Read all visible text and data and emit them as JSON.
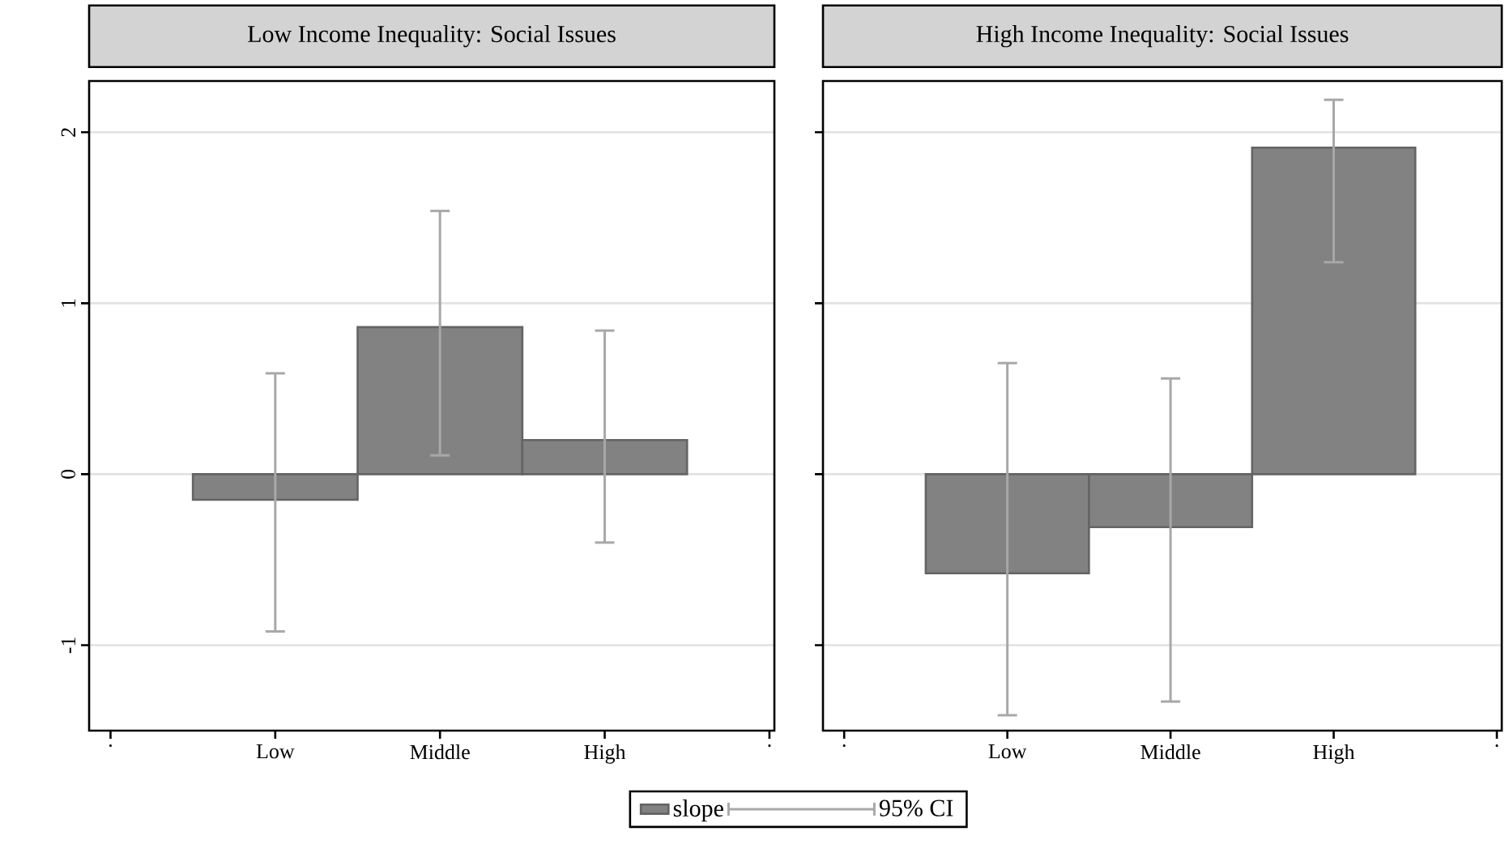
{
  "chart_data": [
    {
      "type": "bar",
      "title": "Low Income Inequality: Social Issues",
      "categories": [
        ".",
        "Low",
        "Middle",
        "High",
        "."
      ],
      "series": [
        {
          "name": "slope",
          "color": "#828282",
          "values": [
            null,
            -0.15,
            0.86,
            0.2,
            null
          ],
          "errors": [
            null,
            [
              -0.92,
              0.59
            ],
            [
              0.11,
              1.54
            ],
            [
              -0.4,
              0.84
            ],
            null
          ]
        }
      ],
      "ylim": [
        -1.5,
        2.3
      ],
      "yticks": [
        -1,
        0,
        1,
        2
      ],
      "grid": "y",
      "legend": "bottom",
      "annotations": [
        "95% CI"
      ]
    },
    {
      "type": "bar",
      "title": "High Income Inequality: Social Issues",
      "categories": [
        ".",
        "Low",
        "Middle",
        "High",
        "."
      ],
      "series": [
        {
          "color": "#828282",
          "values": [
            null,
            -0.58,
            -0.31,
            1.91,
            null
          ],
          "errors": [
            null,
            [
              -1.41,
              0.65
            ],
            [
              -1.33,
              0.56
            ],
            [
              1.24,
              2.19
            ],
            null
          ]
        }
      ],
      "ylim": [
        -1.5,
        2.3
      ],
      "yticks": [
        -1,
        0,
        1,
        2
      ],
      "grid": "y",
      "tick_labels": "x"
    }
  ]
}
